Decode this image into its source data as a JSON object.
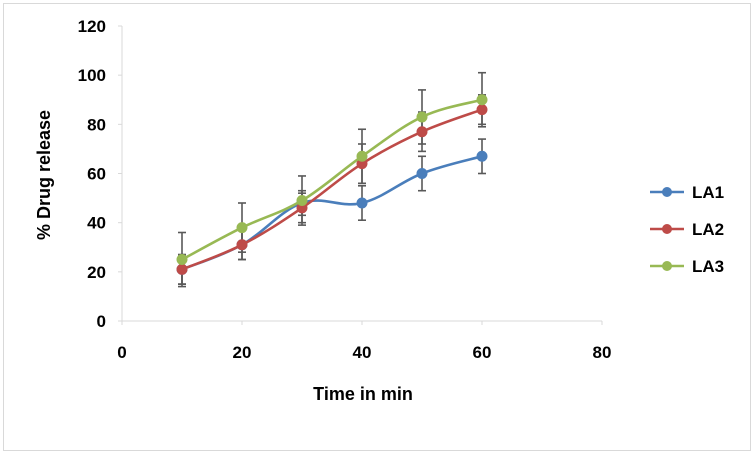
{
  "chart_data": {
    "type": "line",
    "title": "",
    "xlabel": "Time in min",
    "ylabel": "% Drug release",
    "xlim": [
      0,
      80
    ],
    "ylim": [
      0,
      120
    ],
    "xticks": [
      0,
      20,
      40,
      60,
      80
    ],
    "yticks": [
      0,
      20,
      40,
      60,
      80,
      100,
      120
    ],
    "grid": false,
    "legend_position": "right",
    "x": [
      10,
      20,
      30,
      40,
      50,
      60
    ],
    "series": [
      {
        "name": "LA1",
        "color": "#4a7ebb",
        "values": [
          21,
          31,
          48,
          48,
          60,
          67
        ],
        "errors": [
          6,
          6,
          5,
          7,
          7,
          7
        ]
      },
      {
        "name": "LA2",
        "color": "#be4b48",
        "values": [
          21,
          31,
          46,
          64,
          77,
          86
        ],
        "errors": [
          6,
          6,
          6,
          8,
          8,
          6
        ]
      },
      {
        "name": "LA3",
        "color": "#98b954",
        "values": [
          25,
          38,
          49,
          67,
          83,
          90
        ],
        "errors": [
          11,
          10,
          10,
          11,
          11,
          11
        ]
      }
    ]
  }
}
